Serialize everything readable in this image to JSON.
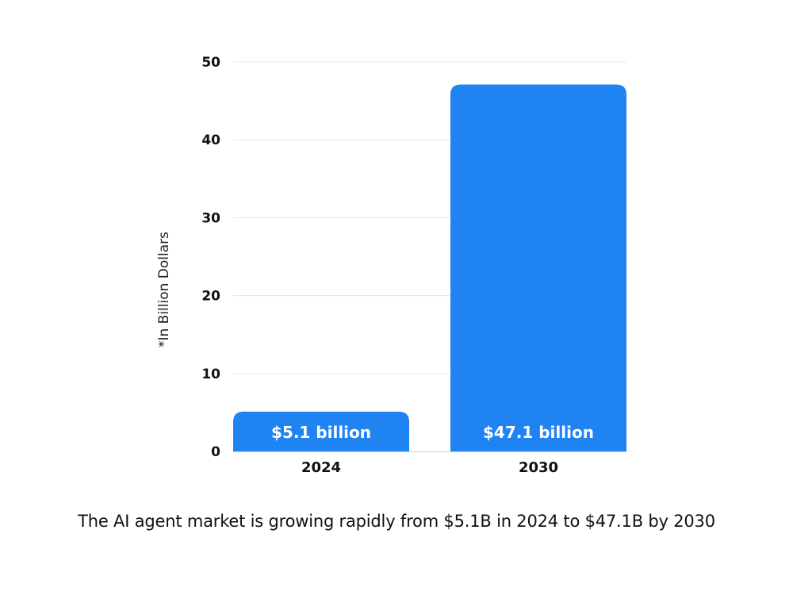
{
  "chart_data": {
    "type": "bar",
    "categories": [
      "2024",
      "2030"
    ],
    "values": [
      5.1,
      47.1
    ],
    "value_labels": [
      "$5.1 billion",
      "$47.1 billion"
    ],
    "ylabel": "*In Billion Dollars",
    "ylim": [
      0,
      50
    ],
    "yticks": [
      0,
      10,
      20,
      30,
      40,
      50
    ],
    "grid": true,
    "bar_color": "#1f84f2"
  },
  "caption": "The AI agent market is growing rapidly from $5.1B in 2024 to $47.1B by 2030"
}
